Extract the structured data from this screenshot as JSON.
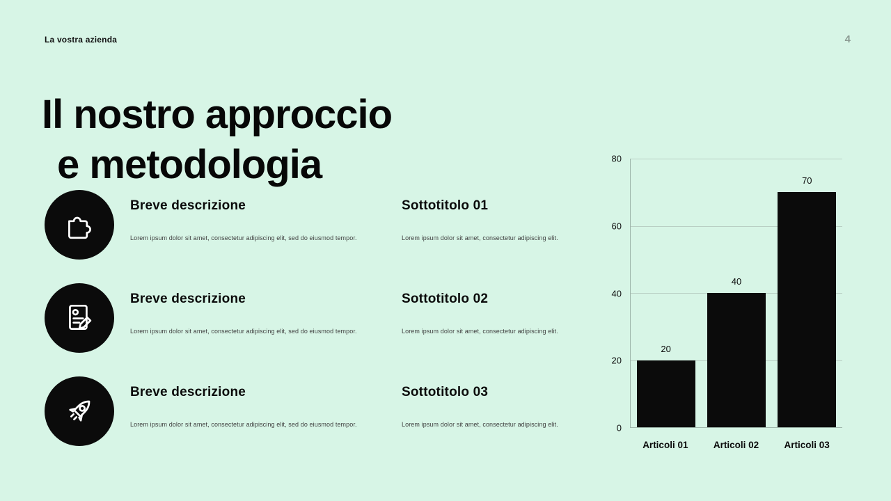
{
  "slide": {
    "company_label": "La vostra azienda",
    "page_number": "4",
    "title_line1": "Il nostro approccio",
    "title_line2": "e metodologia"
  },
  "features": [
    {
      "icon": "puzzle-icon",
      "left_title": "Breve descrizione",
      "left_body": "Lorem ipsum dolor sit amet, consectetur adipiscing elit, sed do eiusmod tempor.",
      "right_title": "Sottotitolo 01",
      "right_body": "Lorem ipsum dolor sit amet, consectetur adipiscing elit."
    },
    {
      "icon": "document-pencil-icon",
      "left_title": "Breve descrizione",
      "left_body": "Lorem ipsum dolor sit amet, consectetur adipiscing elit, sed do eiusmod tempor.",
      "right_title": "Sottotitolo 02",
      "right_body": "Lorem ipsum dolor sit amet, consectetur adipiscing elit."
    },
    {
      "icon": "rocket-icon",
      "left_title": "Breve descrizione",
      "left_body": "Lorem ipsum dolor sit amet, consectetur adipiscing elit, sed do eiusmod tempor.",
      "right_title": "Sottotitolo 03",
      "right_body": "Lorem ipsum dolor sit amet, consectetur adipiscing elit."
    }
  ],
  "chart_data": {
    "type": "bar",
    "categories": [
      "Articoli 01",
      "Articoli 02",
      "Articoli 03"
    ],
    "values": [
      20,
      40,
      70
    ],
    "title": "",
    "xlabel": "",
    "ylabel": "",
    "ylim": [
      0,
      80
    ],
    "yticks": [
      0,
      20,
      40,
      60,
      80
    ],
    "grid": true,
    "legend": "none",
    "bar_color": "#0b0b0b"
  },
  "colors": {
    "background": "#d7f5e6",
    "text": "#0b0b0b",
    "muted_text": "#3f3f3f",
    "page_number": "#8c9b93",
    "grid_line": "#b9cfc4",
    "bar": "#0b0b0b"
  }
}
